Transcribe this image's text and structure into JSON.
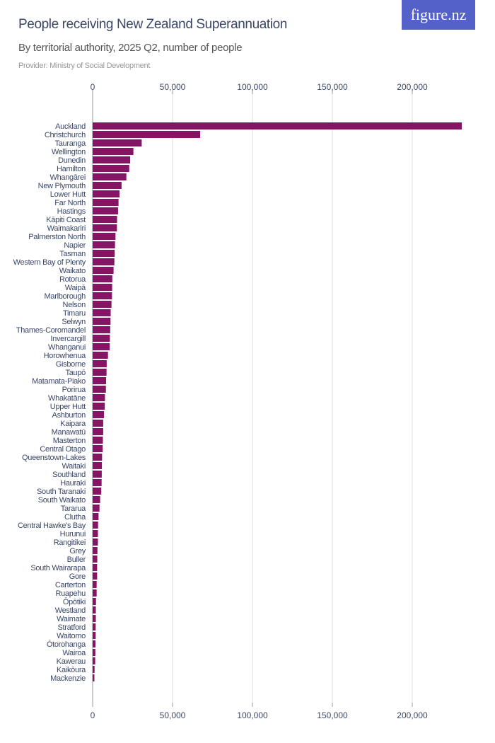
{
  "logo": "figure.nz",
  "colors": {
    "bar": "#861464",
    "logo_bg": "#5461c8",
    "title": "#3a4666"
  },
  "chart_data": {
    "type": "bar",
    "orientation": "horizontal",
    "title": "People receiving New Zealand Superannuation",
    "subtitle": "By territorial authority, 2025 Q2, number of people",
    "provider": "Provider: Ministry of Social Development",
    "xlim": [
      0,
      240000
    ],
    "ticks": [
      0,
      50000,
      100000,
      150000,
      200000
    ],
    "tick_labels": [
      "0",
      "50,000",
      "100,000",
      "150,000",
      "200,000"
    ],
    "grid": true,
    "categories": [
      "Auckland",
      "Christchurch",
      "Tauranga",
      "Wellington",
      "Dunedin",
      "Hamilton",
      "Whangārei",
      "New Plymouth",
      "Lower Hutt",
      "Far North",
      "Hastings",
      "Kāpiti Coast",
      "Waimakariri",
      "Palmerston North",
      "Napier",
      "Tasman",
      "Western Bay of Plenty",
      "Waikato",
      "Rotorua",
      "Waipā",
      "Marlborough",
      "Nelson",
      "Timaru",
      "Selwyn",
      "Thames-Coromandel",
      "Invercargill",
      "Whanganui",
      "Horowhenua",
      "Gisborne",
      "Taupō",
      "Matamata-Piako",
      "Porirua",
      "Whakatāne",
      "Upper Hutt",
      "Ashburton",
      "Kaipara",
      "Manawatū",
      "Masterton",
      "Central Otago",
      "Queenstown-Lakes",
      "Waitaki",
      "Southland",
      "Hauraki",
      "South Taranaki",
      "South Waikato",
      "Tararua",
      "Clutha",
      "Central Hawke's Bay",
      "Hurunui",
      "Rangitikei",
      "Grey",
      "Buller",
      "South Wairarapa",
      "Gore",
      "Carterton",
      "Ruapehu",
      "Ōpōtiki",
      "Westland",
      "Waimate",
      "Stratford",
      "Waitomo",
      "Ōtorohanga",
      "Wairoa",
      "Kawerau",
      "Kaikōura",
      "Mackenzie"
    ],
    "values": [
      231000,
      67300,
      30700,
      25500,
      23500,
      22900,
      21100,
      18100,
      16800,
      16200,
      15900,
      15300,
      15200,
      14300,
      14000,
      13800,
      13600,
      13100,
      12300,
      12200,
      12100,
      11800,
      11300,
      11200,
      11000,
      10800,
      10700,
      9600,
      8800,
      8700,
      8400,
      8300,
      7700,
      7600,
      7100,
      6600,
      6600,
      6400,
      6300,
      5900,
      5800,
      5700,
      5600,
      5400,
      4700,
      4300,
      3700,
      3400,
      3300,
      3300,
      3000,
      2900,
      2800,
      2800,
      2500,
      2500,
      2100,
      2000,
      2000,
      1900,
      1900,
      1800,
      1700,
      1600,
      1200,
      1100
    ]
  }
}
